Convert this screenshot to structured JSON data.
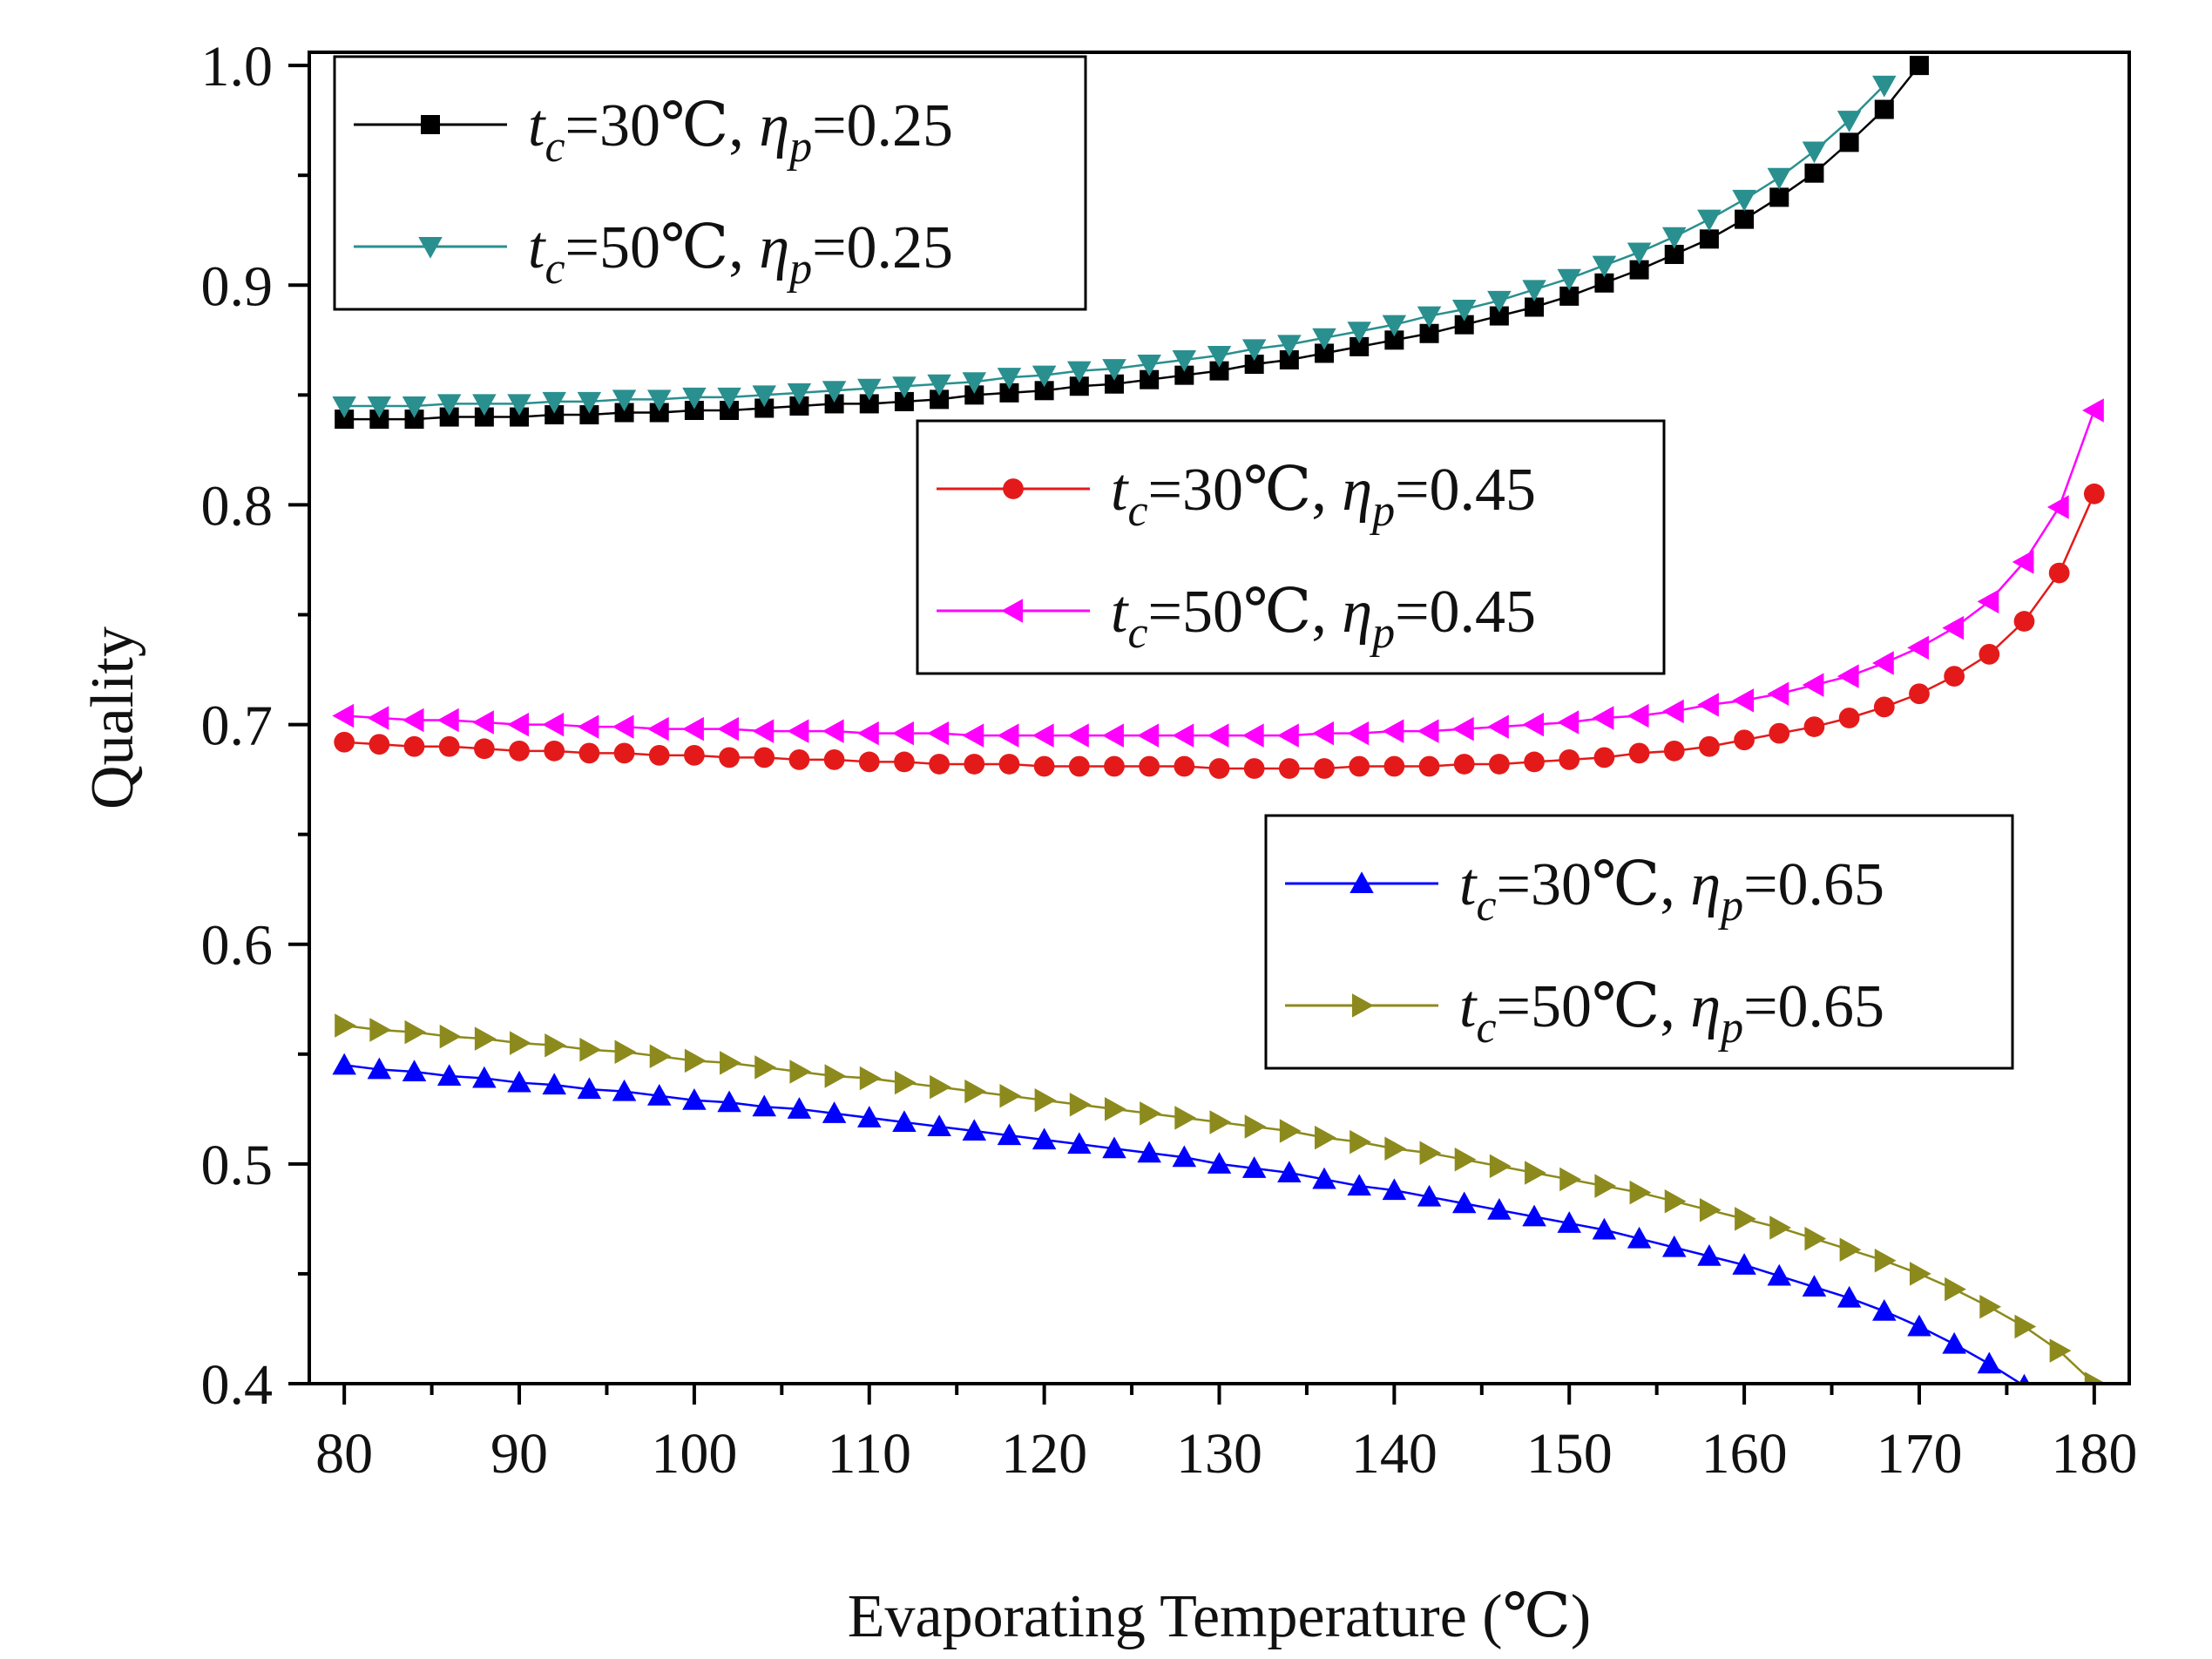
{
  "chart_data": {
    "type": "line",
    "title": "",
    "xlabel": "Evaporating Temperature (℃)",
    "ylabel": "Quality",
    "xlim": [
      78,
      182
    ],
    "ylim": [
      0.4,
      1.006
    ],
    "xticks": [
      80,
      90,
      100,
      110,
      120,
      130,
      140,
      150,
      160,
      170,
      180
    ],
    "xtick_labels": [
      "80",
      "90",
      "100",
      "110",
      "120",
      "130",
      "140",
      "150",
      "160",
      "170",
      "180"
    ],
    "yticks": [
      0.4,
      0.5,
      0.6,
      0.7,
      0.8,
      0.9,
      1.0
    ],
    "ytick_labels": [
      "0.4",
      "0.5",
      "0.6",
      "0.7",
      "0.8",
      "0.9",
      "1.0"
    ],
    "grid": false,
    "legends": [
      {
        "placement": "top-left",
        "entries": [
          0,
          1
        ]
      },
      {
        "placement": "center-right",
        "entries": [
          2,
          3
        ]
      },
      {
        "placement": "lower-right",
        "entries": [
          4,
          5
        ]
      }
    ],
    "series": [
      {
        "name": "t_c=30℃, η_p=0.25",
        "label": {
          "t": "t",
          "c": "c",
          "mid": "=30℃, ",
          "eta": "η",
          "p": "p",
          "end": "=0.25"
        },
        "color": "#000000",
        "marker": "square",
        "x": [
          80,
          82,
          84,
          86,
          88,
          90,
          92,
          94,
          96,
          98,
          100,
          102,
          104,
          106,
          108,
          110,
          112,
          114,
          116,
          118,
          120,
          122,
          124,
          126,
          128,
          130,
          132,
          134,
          136,
          138,
          140,
          142,
          144,
          146,
          148,
          150,
          152,
          154,
          156,
          158,
          160,
          162,
          164,
          166,
          168,
          170
        ],
        "values": [
          0.839,
          0.839,
          0.839,
          0.84,
          0.84,
          0.84,
          0.841,
          0.841,
          0.842,
          0.842,
          0.843,
          0.843,
          0.844,
          0.845,
          0.846,
          0.846,
          0.847,
          0.848,
          0.85,
          0.851,
          0.852,
          0.854,
          0.855,
          0.857,
          0.859,
          0.861,
          0.864,
          0.866,
          0.869,
          0.872,
          0.875,
          0.878,
          0.882,
          0.886,
          0.89,
          0.895,
          0.901,
          0.907,
          0.914,
          0.921,
          0.93,
          0.94,
          0.951,
          0.965,
          0.98,
          1.0
        ]
      },
      {
        "name": "t_c=50℃, η_p=0.25",
        "label": {
          "t": "t",
          "c": "c",
          "mid": "=50℃, ",
          "eta": "η",
          "p": "p",
          "end": "=0.25"
        },
        "color": "#2a8f8f",
        "marker": "triangle-down",
        "x": [
          80,
          82,
          84,
          86,
          88,
          90,
          92,
          94,
          96,
          98,
          100,
          102,
          104,
          106,
          108,
          110,
          112,
          114,
          116,
          118,
          120,
          122,
          124,
          126,
          128,
          130,
          132,
          134,
          136,
          138,
          140,
          142,
          144,
          146,
          148,
          150,
          152,
          154,
          156,
          158,
          160,
          162,
          164,
          166,
          168
        ],
        "values": [
          0.845,
          0.845,
          0.845,
          0.846,
          0.846,
          0.846,
          0.847,
          0.847,
          0.848,
          0.848,
          0.849,
          0.849,
          0.85,
          0.851,
          0.852,
          0.853,
          0.854,
          0.855,
          0.856,
          0.858,
          0.859,
          0.861,
          0.862,
          0.864,
          0.866,
          0.868,
          0.871,
          0.873,
          0.876,
          0.879,
          0.882,
          0.886,
          0.889,
          0.893,
          0.898,
          0.903,
          0.909,
          0.915,
          0.922,
          0.93,
          0.939,
          0.949,
          0.961,
          0.975,
          0.991
        ]
      },
      {
        "name": "t_c=30℃, η_p=0.45",
        "label": {
          "t": "t",
          "c": "c",
          "mid": "=30℃, ",
          "eta": "η",
          "p": "p",
          "end": "=0.45"
        },
        "color": "#e41a1a",
        "marker": "circle",
        "x": [
          80,
          82,
          84,
          86,
          88,
          90,
          92,
          94,
          96,
          98,
          100,
          102,
          104,
          106,
          108,
          110,
          112,
          114,
          116,
          118,
          120,
          122,
          124,
          126,
          128,
          130,
          132,
          134,
          136,
          138,
          140,
          142,
          144,
          146,
          148,
          150,
          152,
          154,
          156,
          158,
          160,
          162,
          164,
          166,
          168,
          170,
          172,
          174,
          176,
          178,
          180
        ],
        "values": [
          0.692,
          0.691,
          0.69,
          0.69,
          0.689,
          0.688,
          0.688,
          0.687,
          0.687,
          0.686,
          0.686,
          0.685,
          0.685,
          0.684,
          0.684,
          0.683,
          0.683,
          0.682,
          0.682,
          0.682,
          0.681,
          0.681,
          0.681,
          0.681,
          0.681,
          0.68,
          0.68,
          0.68,
          0.68,
          0.681,
          0.681,
          0.681,
          0.682,
          0.682,
          0.683,
          0.684,
          0.685,
          0.687,
          0.688,
          0.69,
          0.693,
          0.696,
          0.699,
          0.703,
          0.708,
          0.714,
          0.722,
          0.732,
          0.747,
          0.769,
          0.805
        ]
      },
      {
        "name": "t_c=50℃, η_p=0.45",
        "label": {
          "t": "t",
          "c": "c",
          "mid": "=50℃, ",
          "eta": "η",
          "p": "p",
          "end": "=0.45"
        },
        "color": "#ff00ff",
        "marker": "triangle-left",
        "x": [
          80,
          82,
          84,
          86,
          88,
          90,
          92,
          94,
          96,
          98,
          100,
          102,
          104,
          106,
          108,
          110,
          112,
          114,
          116,
          118,
          120,
          122,
          124,
          126,
          128,
          130,
          132,
          134,
          136,
          138,
          140,
          142,
          144,
          146,
          148,
          150,
          152,
          154,
          156,
          158,
          160,
          162,
          164,
          166,
          168,
          170,
          172,
          174,
          176,
          178,
          180
        ],
        "values": [
          0.704,
          0.703,
          0.702,
          0.702,
          0.701,
          0.7,
          0.7,
          0.699,
          0.699,
          0.698,
          0.698,
          0.698,
          0.697,
          0.697,
          0.697,
          0.696,
          0.696,
          0.696,
          0.695,
          0.695,
          0.695,
          0.695,
          0.695,
          0.695,
          0.695,
          0.695,
          0.695,
          0.695,
          0.696,
          0.696,
          0.697,
          0.697,
          0.698,
          0.699,
          0.7,
          0.701,
          0.703,
          0.704,
          0.706,
          0.709,
          0.711,
          0.714,
          0.718,
          0.722,
          0.728,
          0.735,
          0.744,
          0.756,
          0.774,
          0.799,
          0.843
        ]
      },
      {
        "name": "t_c=30℃, η_p=0.65",
        "label": {
          "t": "t",
          "c": "c",
          "mid": "=30℃, ",
          "eta": "η",
          "p": "p",
          "end": "=0.65"
        },
        "color": "#0000ff",
        "marker": "triangle-up",
        "x": [
          80,
          82,
          84,
          86,
          88,
          90,
          92,
          94,
          96,
          98,
          100,
          102,
          104,
          106,
          108,
          110,
          112,
          114,
          116,
          118,
          120,
          122,
          124,
          126,
          128,
          130,
          132,
          134,
          136,
          138,
          140,
          142,
          144,
          146,
          148,
          150,
          152,
          154,
          156,
          158,
          160,
          162,
          164,
          166,
          168,
          170,
          172,
          174,
          176
        ],
        "values": [
          0.545,
          0.543,
          0.542,
          0.54,
          0.539,
          0.537,
          0.536,
          0.534,
          0.533,
          0.531,
          0.529,
          0.528,
          0.526,
          0.525,
          0.523,
          0.521,
          0.519,
          0.517,
          0.515,
          0.513,
          0.511,
          0.509,
          0.507,
          0.505,
          0.503,
          0.5,
          0.498,
          0.496,
          0.493,
          0.49,
          0.488,
          0.485,
          0.482,
          0.479,
          0.476,
          0.473,
          0.47,
          0.466,
          0.462,
          0.458,
          0.454,
          0.449,
          0.444,
          0.439,
          0.433,
          0.426,
          0.418,
          0.409,
          0.399
        ]
      },
      {
        "name": "t_c=50℃, η_p=0.65",
        "label": {
          "t": "t",
          "c": "c",
          "mid": "=50℃, ",
          "eta": "η",
          "p": "p",
          "end": "=0.65"
        },
        "color": "#8c8a1c",
        "marker": "triangle-right",
        "x": [
          80,
          82,
          84,
          86,
          88,
          90,
          92,
          94,
          96,
          98,
          100,
          102,
          104,
          106,
          108,
          110,
          112,
          114,
          116,
          118,
          120,
          122,
          124,
          126,
          128,
          130,
          132,
          134,
          136,
          138,
          140,
          142,
          144,
          146,
          148,
          150,
          152,
          154,
          156,
          158,
          160,
          162,
          164,
          166,
          168,
          170,
          172,
          174,
          176,
          178,
          180
        ],
        "values": [
          0.563,
          0.561,
          0.56,
          0.558,
          0.557,
          0.555,
          0.554,
          0.552,
          0.551,
          0.549,
          0.547,
          0.546,
          0.544,
          0.542,
          0.54,
          0.539,
          0.537,
          0.535,
          0.533,
          0.531,
          0.529,
          0.527,
          0.525,
          0.523,
          0.521,
          0.519,
          0.517,
          0.515,
          0.512,
          0.51,
          0.507,
          0.505,
          0.502,
          0.499,
          0.496,
          0.493,
          0.49,
          0.487,
          0.483,
          0.479,
          0.475,
          0.471,
          0.466,
          0.461,
          0.456,
          0.45,
          0.443,
          0.435,
          0.426,
          0.415,
          0.4
        ]
      }
    ]
  }
}
